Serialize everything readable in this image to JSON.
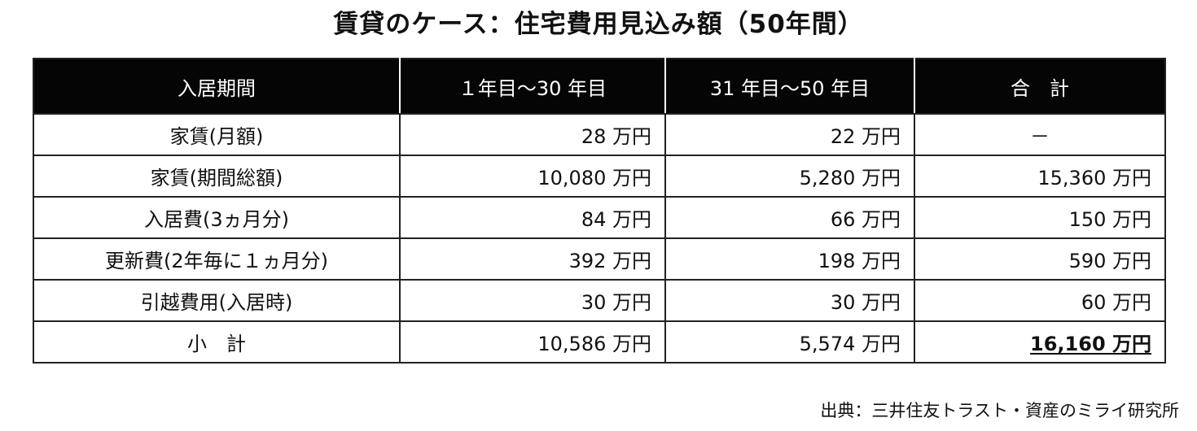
{
  "title": "賃貸のケース：住宅費用見込み額（50年間）",
  "table": {
    "headers": [
      "入居期間",
      "１年目～30 年目",
      "31 年目～50 年目",
      "合　計"
    ],
    "rows": [
      {
        "label": "家賃(月額)",
        "v1": "28 万円",
        "v2": "22 万円",
        "v3": "－"
      },
      {
        "label": "家賃(期間総額)",
        "v1": "10,080 万円",
        "v2": "5,280 万円",
        "v3": "15,360 万円"
      },
      {
        "label": "入居費(3ヵ月分)",
        "v1": "84 万円",
        "v2": "66 万円",
        "v3": "150 万円"
      },
      {
        "label": "更新費(2年毎に１ヵ月分)",
        "v1": "392 万円",
        "v2": "198 万円",
        "v3": "590 万円"
      },
      {
        "label": "引越費用(入居時)",
        "v1": "30 万円",
        "v2": "30 万円",
        "v3": "60 万円"
      },
      {
        "label": "小　計",
        "v1": "10,586 万円",
        "v2": "5,574 万円",
        "v3": "16,160 万円"
      }
    ]
  },
  "source": "出典：三井住友トラスト・資産のミライ研究所"
}
